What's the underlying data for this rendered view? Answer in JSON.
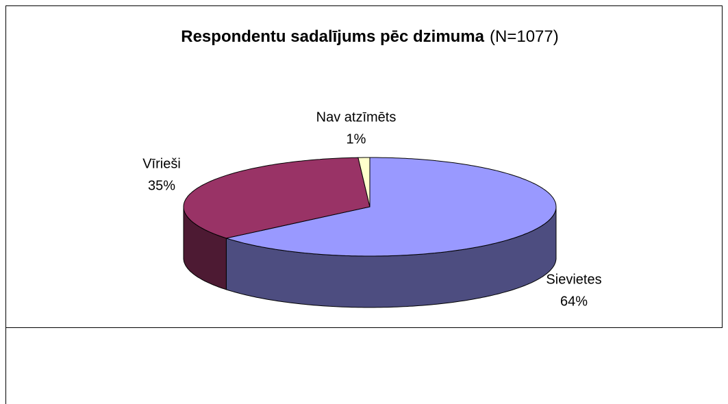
{
  "chart_data": {
    "type": "pie",
    "title": "Respondentu sadalījums pēc dzimuma",
    "subtitle": "(N=1077)",
    "categories": [
      "Sievietes",
      "Vīrieši",
      "Nav atzīmēts"
    ],
    "values": [
      64,
      35,
      1
    ],
    "value_labels": [
      "64%",
      "35%",
      "1%"
    ],
    "colors": [
      "#9999ff",
      "#993366",
      "#ffffcc"
    ],
    "side_colors": [
      "#4d4d80",
      "#4d1a33",
      "#80805f"
    ]
  }
}
